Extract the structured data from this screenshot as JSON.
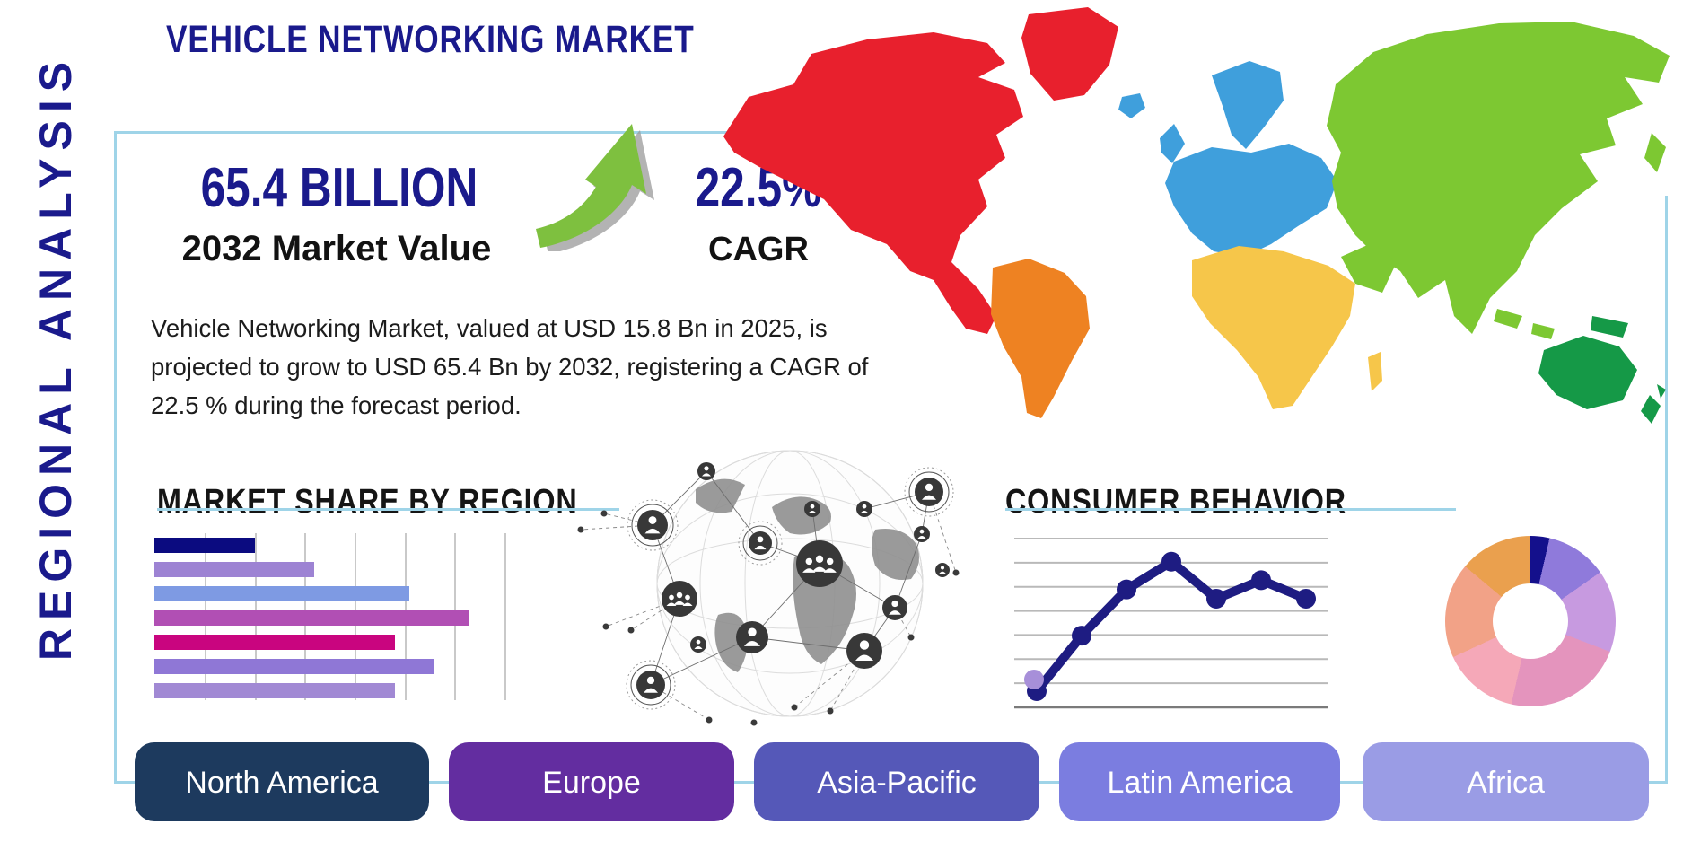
{
  "title": "VEHICLE NETWORKING MARKET",
  "side_label": "REGIONAL ANALYSIS",
  "stats": {
    "market_value": "65.4 BILLION",
    "market_value_caption": "2032 Market Value",
    "cagr_value": "22.5%",
    "cagr_caption": "CAGR"
  },
  "description": "Vehicle Networking Market, valued at USD 15.8 Bn in 2025, is projected to grow to USD 65.4 Bn by 2032, registering a CAGR of 22.5 % during the forecast period.",
  "sections": {
    "market_share_title": "MARKET SHARE BY REGION",
    "consumer_behavior_title": "CONSUMER BEHAVIOR"
  },
  "region_buttons": [
    {
      "label": "North America",
      "color": "#1d3a5e"
    },
    {
      "label": "Europe",
      "color": "#632da0"
    },
    {
      "label": "Asia-Pacific",
      "color": "#5558b8"
    },
    {
      "label": "Latin America",
      "color": "#7b7de0"
    },
    {
      "label": "Africa",
      "color": "#9a9ce5"
    }
  ],
  "map_regions": {
    "north_america": "#e8202d",
    "south_america": "#ee8222",
    "europe": "#3f9fdc",
    "africa": "#f6c64a",
    "asia": "#7dc832",
    "oceania": "#159947"
  },
  "theme": {
    "navy": "#1a1a8c",
    "panel_border": "#9fd4e8",
    "arrow_green": "#7ec03f",
    "arrow_shadow": "#9a9a9a"
  },
  "chart_data": [
    {
      "id": "market-share-bar",
      "type": "bar",
      "orientation": "horizontal",
      "title": "MARKET SHARE BY REGION",
      "categories": [],
      "axis_labels_shown": false,
      "values": [
        2.0,
        3.2,
        5.1,
        6.3,
        4.8,
        5.6,
        4.8
      ],
      "xlim": [
        0,
        7.5
      ],
      "grid": true,
      "bar_colors": [
        "#0b0b80",
        "#9d83d3",
        "#7e9ae3",
        "#b14fb4",
        "#c9057f",
        "#8f77d6",
        "#a189d4"
      ]
    },
    {
      "id": "consumer-behavior-line",
      "type": "line",
      "title": "CONSUMER BEHAVIOR",
      "x": [
        1,
        2,
        3,
        4,
        5,
        6,
        7
      ],
      "values": [
        0.7,
        3.1,
        5.1,
        6.3,
        4.7,
        5.5,
        4.7
      ],
      "ylim": [
        0,
        7.3
      ],
      "gridline_count": 8,
      "grid": true,
      "axis_labels_shown": false,
      "line_color": "#1e1c82",
      "accent_dot": {
        "index": 0,
        "color": "#a78fd9"
      }
    },
    {
      "id": "regional-donut",
      "type": "pie",
      "donut": true,
      "start_angle_deg": 0,
      "values_deg": [
        13,
        42,
        56,
        82,
        52,
        65,
        50
      ],
      "colors": [
        "#14108c",
        "#8f7adb",
        "#c79ae0",
        "#e494bd",
        "#f5a8b8",
        "#f2a287",
        "#eaa04e"
      ],
      "labels_shown": false
    }
  ]
}
